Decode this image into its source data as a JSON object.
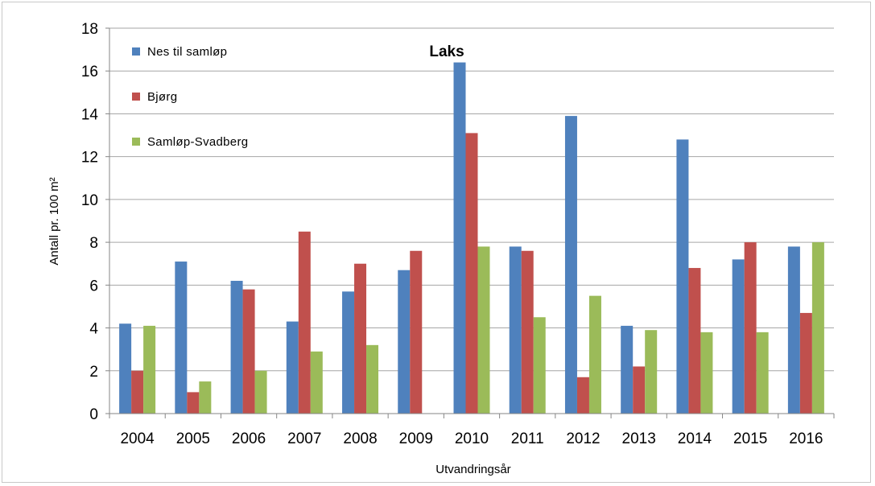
{
  "chart_data": {
    "type": "bar",
    "title": "Laks",
    "xlabel": "Utvandringsår",
    "ylabel": "Antall pr. 100 m²",
    "ylim": [
      0,
      18
    ],
    "yticks": [
      0,
      2,
      4,
      6,
      8,
      10,
      12,
      14,
      16,
      18
    ],
    "grid": true,
    "legend_position": "top-left",
    "categories": [
      "2004",
      "2005",
      "2006",
      "2007",
      "2008",
      "2009",
      "2010",
      "2011",
      "2012",
      "2013",
      "2014",
      "2015",
      "2016"
    ],
    "series": [
      {
        "name": "Nes til samløp",
        "color": "#4f81bd",
        "values": [
          4.2,
          7.1,
          6.2,
          4.3,
          5.7,
          6.7,
          16.4,
          7.8,
          13.9,
          4.1,
          12.8,
          7.2,
          7.8
        ]
      },
      {
        "name": "Bjørg",
        "color": "#c0504d",
        "values": [
          2.0,
          1.0,
          5.8,
          8.5,
          7.0,
          7.6,
          13.1,
          7.6,
          1.7,
          2.2,
          6.8,
          8.0,
          4.7
        ]
      },
      {
        "name": "Samløp-Svadberg",
        "color": "#9bbb59",
        "values": [
          4.1,
          1.5,
          2.0,
          2.9,
          3.2,
          0,
          7.8,
          4.5,
          5.5,
          3.9,
          3.8,
          3.8,
          8.0
        ]
      }
    ]
  }
}
